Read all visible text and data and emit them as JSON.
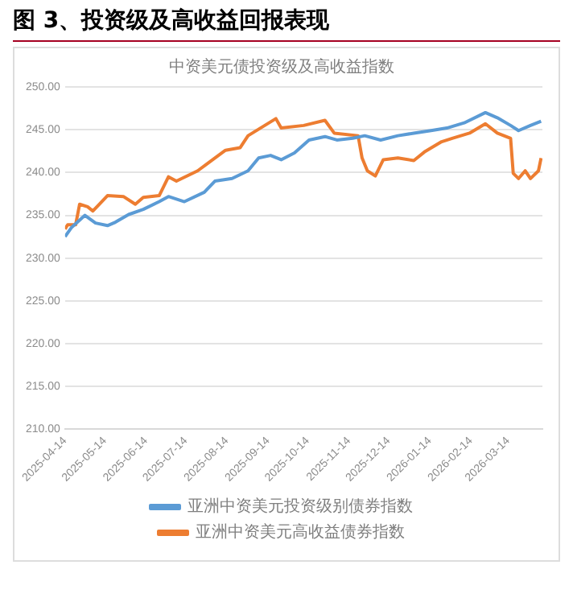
{
  "chart_data": {
    "type": "line",
    "title": "图 3、投资级及高收益回报表现",
    "subtitle": "中资美元债投资级及高收益指数",
    "series": [
      {
        "name": "亚洲中资美元投资级别债券指数",
        "color": "#5b9bd5",
        "x": [
          "2025-04-14",
          "2025-04-19",
          "2025-04-29",
          "2025-05-07",
          "2025-05-16",
          "2025-05-22",
          "2025-06-01",
          "2025-06-12",
          "2025-06-24",
          "2025-07-01",
          "2025-07-13",
          "2025-07-28",
          "2025-08-05",
          "2025-08-18",
          "2025-08-30",
          "2025-09-07",
          "2025-09-16",
          "2025-09-24",
          "2025-10-04",
          "2025-10-15",
          "2025-10-27",
          "2025-11-05",
          "2025-11-17",
          "2025-11-26",
          "2025-12-08",
          "2025-12-21",
          "2026-01-02",
          "2026-01-15",
          "2026-01-27",
          "2026-02-09",
          "2026-02-25",
          "2026-03-06",
          "2026-03-16",
          "2026-03-22",
          "2026-03-31",
          "2026-04-08"
        ],
        "values": [
          232.5,
          233.6,
          235.0,
          234.1,
          233.8,
          234.2,
          235.1,
          235.7,
          236.6,
          237.2,
          236.6,
          237.7,
          239.0,
          239.3,
          240.2,
          241.7,
          242.0,
          241.5,
          242.3,
          243.8,
          244.2,
          243.8,
          244.0,
          244.3,
          243.8,
          244.3,
          244.6,
          244.9,
          245.2,
          245.8,
          247.0,
          246.4,
          245.5,
          244.9,
          245.5,
          246.0
        ]
      },
      {
        "name": "亚洲中资美元高收益债券指数",
        "color": "#ed7d31",
        "x": [
          "2025-04-14",
          "2025-04-16",
          "2025-04-22",
          "2025-04-25",
          "2025-05-01",
          "2025-05-05",
          "2025-05-16",
          "2025-05-28",
          "2025-06-06",
          "2025-06-12",
          "2025-06-24",
          "2025-07-01",
          "2025-07-07",
          "2025-07-23",
          "2025-08-13",
          "2025-08-24",
          "2025-08-30",
          "2025-09-20",
          "2025-09-24",
          "2025-10-11",
          "2025-10-27",
          "2025-11-03",
          "2025-11-21",
          "2025-11-24",
          "2025-11-28",
          "2025-12-04",
          "2025-12-10",
          "2025-12-21",
          "2026-01-02",
          "2026-01-10",
          "2026-01-23",
          "2026-01-31",
          "2026-02-13",
          "2026-02-25",
          "2026-03-06",
          "2026-03-16",
          "2026-03-18",
          "2026-03-22",
          "2026-03-27",
          "2026-03-31",
          "2026-04-06",
          "2026-04-08"
        ],
        "values": [
          233.4,
          233.9,
          233.9,
          236.3,
          236.0,
          235.5,
          237.3,
          237.2,
          236.3,
          237.1,
          237.3,
          239.5,
          239.0,
          240.2,
          242.6,
          242.9,
          244.3,
          246.3,
          245.2,
          245.5,
          246.1,
          244.6,
          244.3,
          241.7,
          240.2,
          239.6,
          241.5,
          241.7,
          241.4,
          242.4,
          243.6,
          244.0,
          244.6,
          245.7,
          244.6,
          244.0,
          239.9,
          239.3,
          240.2,
          239.3,
          240.2,
          241.7
        ]
      }
    ],
    "xlim": [
      "2025-04-14",
      "2026-04-09"
    ],
    "xticks": [
      "2025-04-14",
      "2025-05-14",
      "2025-06-14",
      "2025-07-14",
      "2025-08-14",
      "2025-09-14",
      "2025-10-14",
      "2025-11-14",
      "2025-12-14",
      "2026-01-14",
      "2026-02-14",
      "2026-03-14"
    ],
    "ylim": [
      210,
      250
    ],
    "yticks": [
      {
        "value": 210,
        "label": "210.00"
      },
      {
        "value": 215,
        "label": "215.00"
      },
      {
        "value": 220,
        "label": "220.00"
      },
      {
        "value": 225,
        "label": "225.00"
      },
      {
        "value": 230,
        "label": "230.00"
      },
      {
        "value": 235,
        "label": "235.00"
      },
      {
        "value": 240,
        "label": "240.00"
      },
      {
        "value": 245,
        "label": "245.00"
      },
      {
        "value": 250,
        "label": "250.00"
      }
    ],
    "grid": "y",
    "legend": "bottom",
    "marker": "none",
    "line_style": "solid"
  }
}
